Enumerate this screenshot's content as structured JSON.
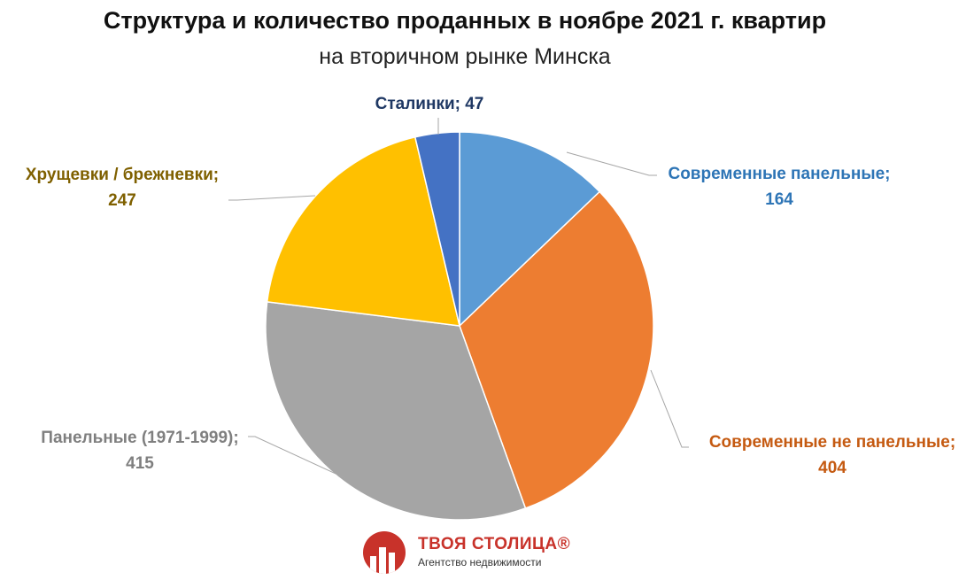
{
  "chart_data": {
    "type": "pie",
    "title": "Структура и количество проданных в ноябре 2021 г. квартир",
    "subtitle": "на вторичном рынке Минска",
    "slices": [
      {
        "label": "Современные панельные;",
        "value": 164,
        "color": "#5b9bd5"
      },
      {
        "label": "Современные не панельные;",
        "value": 404,
        "color": "#ed7d31"
      },
      {
        "label": "Панельные (1971-1999);",
        "value": 415,
        "color": "#a5a5a5"
      },
      {
        "label": "Хрущевки / брежневки;",
        "value": 247,
        "color": "#ffc000"
      },
      {
        "label": "Сталинки;",
        "value": 47,
        "color": "#4472c4"
      }
    ],
    "label_colors": [
      "#2e75b6",
      "#c55a11",
      "#7f7f7f",
      "#7f6000",
      "#1f3864"
    ]
  },
  "logo": {
    "name": "ТВОЯ СТОЛИЦА®",
    "tagline": "Агентство недвижимости"
  }
}
